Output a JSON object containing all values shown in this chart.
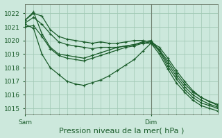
{
  "bg_color": "#cce8dc",
  "grid_color": "#a0c8b4",
  "line_color": "#1a5c2a",
  "marker_color": "#1a5c2a",
  "xlabel": "Pression niveau de la mer( hPa )",
  "xlabel_fontsize": 8,
  "yticks": [
    1015,
    1016,
    1017,
    1018,
    1019,
    1020,
    1021,
    1022
  ],
  "ylim": [
    1014.6,
    1022.7
  ],
  "xlim": [
    0,
    23
  ],
  "xtick_labels": [
    "Sam",
    "Dim"
  ],
  "xtick_positions": [
    0,
    15
  ],
  "vline_x_sam": 0,
  "vline_x_dim": 15,
  "series": [
    [
      1021.5,
      1022.0,
      1021.8,
      1020.8,
      1020.3,
      1020.1,
      1020.0,
      1019.9,
      1019.8,
      1019.9,
      1019.8,
      1019.8,
      1019.9,
      1020.0,
      1020.0,
      1019.9,
      1019.5,
      1018.7,
      1017.8,
      1017.0,
      1016.3,
      1015.8,
      1015.5,
      1015.3
    ],
    [
      1021.3,
      1021.7,
      1021.2,
      1020.5,
      1019.9,
      1019.7,
      1019.6,
      1019.5,
      1019.4,
      1019.5,
      1019.5,
      1019.5,
      1019.6,
      1019.7,
      1019.8,
      1019.8,
      1019.3,
      1018.5,
      1017.6,
      1016.8,
      1016.2,
      1015.8,
      1015.5,
      1015.2
    ],
    [
      1021.5,
      1022.1,
      1020.5,
      1019.5,
      1019.0,
      1018.9,
      1018.8,
      1018.7,
      1018.9,
      1019.1,
      1019.3,
      1019.5,
      1019.6,
      1019.7,
      1019.9,
      1020.0,
      1019.3,
      1018.3,
      1017.4,
      1016.6,
      1016.0,
      1015.6,
      1015.3,
      1015.1
    ],
    [
      1021.0,
      1021.1,
      1020.3,
      1019.4,
      1018.9,
      1018.7,
      1018.6,
      1018.5,
      1018.7,
      1018.9,
      1019.1,
      1019.3,
      1019.5,
      1019.6,
      1019.8,
      1019.9,
      1019.2,
      1018.1,
      1017.2,
      1016.4,
      1015.8,
      1015.4,
      1015.2,
      1015.0
    ],
    [
      1021.2,
      1020.9,
      1019.0,
      1018.0,
      1017.5,
      1017.0,
      1016.8,
      1016.7,
      1016.9,
      1017.1,
      1017.4,
      1017.8,
      1018.2,
      1018.6,
      1019.2,
      1019.8,
      1019.0,
      1017.9,
      1016.9,
      1016.2,
      1015.6,
      1015.2,
      1015.0,
      1014.8
    ]
  ]
}
